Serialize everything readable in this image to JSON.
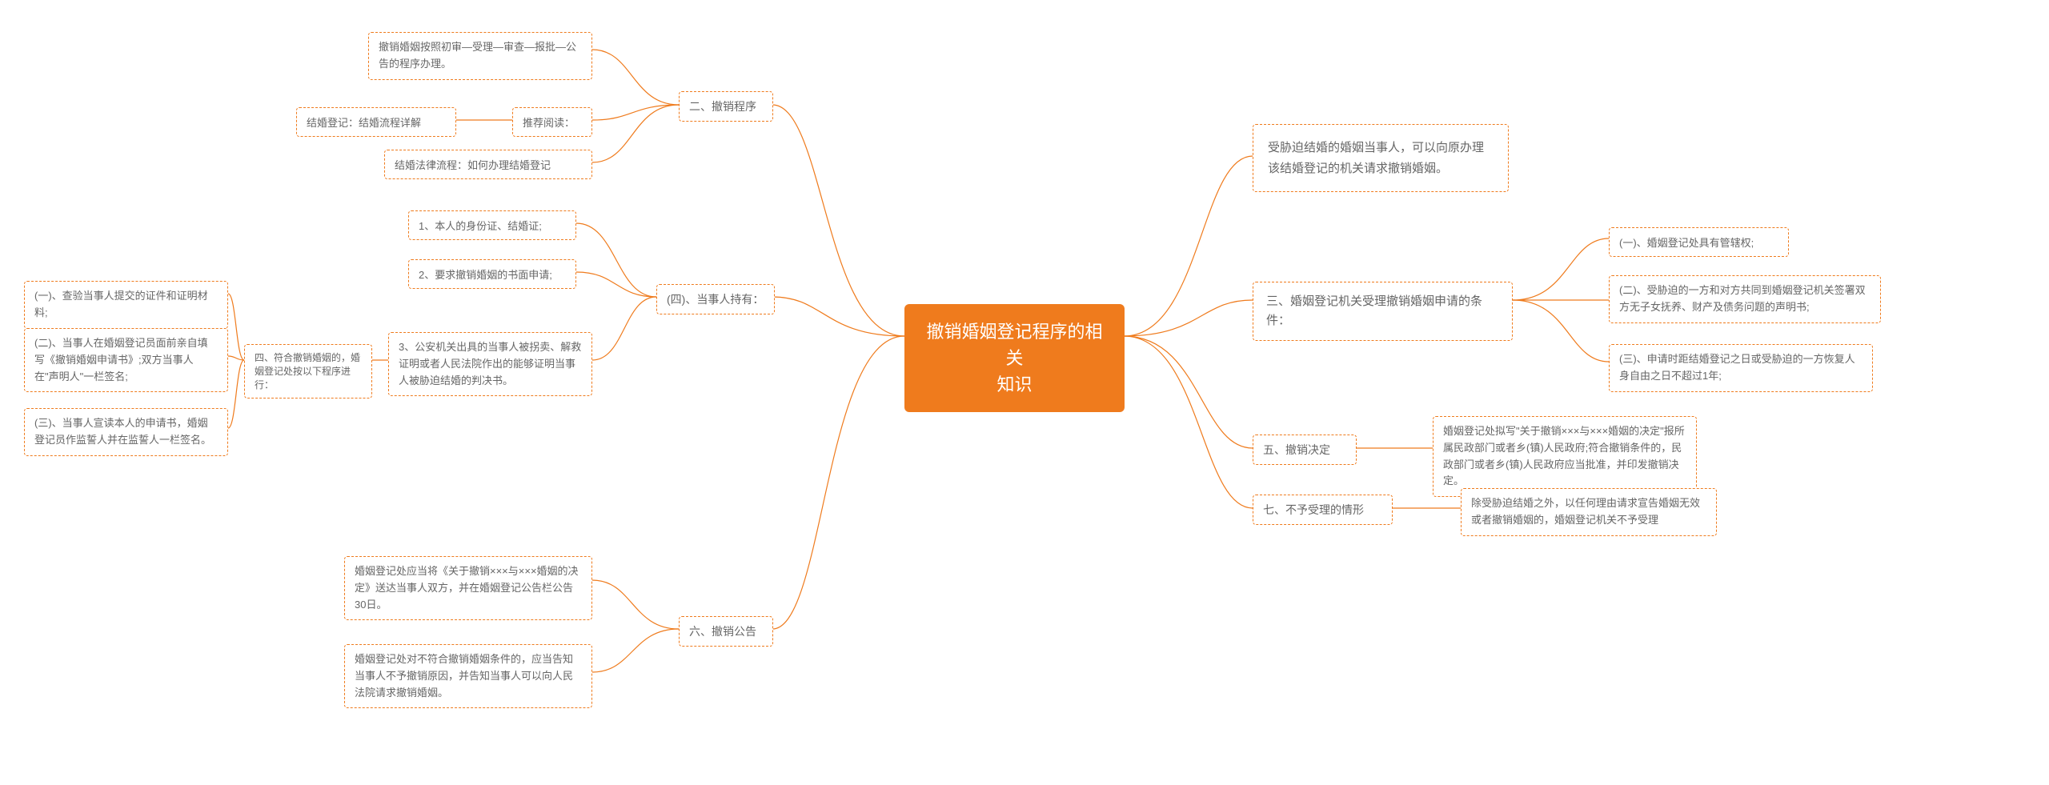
{
  "colors": {
    "accent": "#ef7b1d",
    "node_text": "#666666",
    "node_border": "#ef7b1d",
    "background": "#ffffff"
  },
  "center": {
    "title_l1": "撤销婚姻登记程序的相关",
    "title_l2": "知识"
  },
  "right": {
    "r1": "受胁迫结婚的婚姻当事人，可以向原办理该结婚登记的机关请求撤销婚姻。",
    "r2": "三、婚姻登记机关受理撤销婚姻申请的条件：",
    "r2_children": {
      "c1": "(一)、婚姻登记处具有管辖权;",
      "c2": "(二)、受胁迫的一方和对方共同到婚姻登记机关签署双方无子女抚养、财产及债务问题的声明书;",
      "c3": "(三)、申请时距结婚登记之日或受胁迫的一方恢复人身自由之日不超过1年;"
    },
    "r3": "五、撤销决定",
    "r3_child": "婚姻登记处拟写\"关于撤销×××与×××婚姻的决定\"报所属民政部门或者乡(镇)人民政府;符合撤销条件的，民政部门或者乡(镇)人民政府应当批准，并印发撤销决定。",
    "r4": "七、不予受理的情形",
    "r4_child": "除受胁迫结婚之外，以任何理由请求宣告婚姻无效或者撤销婚姻的，婚姻登记机关不予受理"
  },
  "left": {
    "l1": "二、撤销程序",
    "l1_children": {
      "c1": "撤销婚姻按照初审—受理—审查—报批—公告的程序办理。",
      "c2": "推荐阅读：",
      "c2a": "结婚登记：结婚流程详解",
      "c2b": "结婚法律流程：如何办理结婚登记"
    },
    "l2": "(四)、当事人持有：",
    "l2_children": {
      "c1": "1、本人的身份证、结婚证;",
      "c2": "2、要求撤销婚姻的书面申请;",
      "c3": "3、公安机关出具的当事人被拐卖、解救证明或者人民法院作出的能够证明当事人被胁迫结婚的判决书。"
    },
    "l3": "四、符合撤销婚姻的，婚姻登记处按以下程序进行：",
    "l3_children": {
      "c1": "(一)、查验当事人提交的证件和证明材料;",
      "c2": "(二)、当事人在婚姻登记员面前亲自填写《撤销婚姻申请书》;双方当事人在\"声明人\"一栏签名;",
      "c3": "(三)、当事人宣读本人的申请书，婚姻登记员作监誓人并在监誓人一栏签名。"
    },
    "l4": "六、撤销公告",
    "l4_children": {
      "c1": "婚姻登记处应当将《关于撤销×××与×××婚姻的决定》送达当事人双方，并在婚姻登记公告栏公告30日。",
      "c2": "婚姻登记处对不符合撤销婚姻条件的，应当告知当事人不予撤销原因，并告知当事人可以向人民法院请求撤销婚姻。"
    }
  }
}
